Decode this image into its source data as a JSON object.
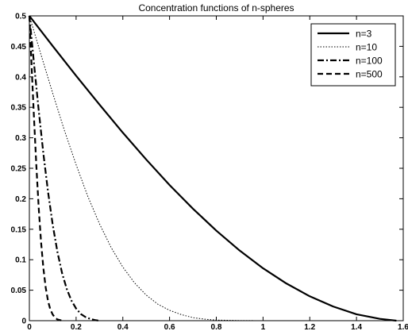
{
  "chart_data": {
    "type": "line",
    "title": "Concentration functions of n-spheres",
    "xlabel": "",
    "ylabel": "",
    "xlim": [
      0,
      1.6
    ],
    "ylim": [
      0,
      0.5
    ],
    "xticks": [
      0,
      0.2,
      0.4,
      0.6,
      0.8,
      1,
      1.2,
      1.4,
      1.6
    ],
    "xtick_labels": [
      "0",
      "0.2",
      "0.4",
      "0.6",
      "0.8",
      "1",
      "1.2",
      "1.4",
      "1.6"
    ],
    "yticks": [
      0,
      0.05,
      0.1,
      0.15,
      0.2,
      0.25,
      0.3,
      0.35,
      0.4,
      0.45,
      0.5
    ],
    "ytick_labels": [
      "0",
      "0.05",
      "0.1",
      "0.15",
      "0.2",
      "0.25",
      "0.3",
      "0.35",
      "0.4",
      "0.45",
      "0.5"
    ],
    "grid": false,
    "legend_position": "top-right",
    "series": [
      {
        "name": "n=3",
        "style": "solid",
        "x": [
          0,
          0.1,
          0.2,
          0.3,
          0.4,
          0.5,
          0.6,
          0.7,
          0.8,
          0.9,
          1.0,
          1.1,
          1.2,
          1.3,
          1.4,
          1.5,
          1.5708
        ],
        "y": [
          0.5,
          0.4505,
          0.4017,
          0.3545,
          0.3084,
          0.2644,
          0.2225,
          0.1837,
          0.1477,
          0.115,
          0.086,
          0.061,
          0.04,
          0.0233,
          0.0105,
          0.003,
          0.0
        ]
      },
      {
        "name": "n=10",
        "style": "dotted",
        "x": [
          0,
          0.05,
          0.1,
          0.15,
          0.2,
          0.25,
          0.3,
          0.35,
          0.4,
          0.45,
          0.5,
          0.55,
          0.6,
          0.65,
          0.7,
          0.75,
          0.8,
          0.9,
          1.0
        ],
        "y": [
          0.5,
          0.436,
          0.373,
          0.312,
          0.256,
          0.204,
          0.159,
          0.12,
          0.088,
          0.062,
          0.042,
          0.027,
          0.017,
          0.01,
          0.005,
          0.0025,
          0.001,
          0.0002,
          0.0
        ]
      },
      {
        "name": "n=100",
        "style": "dashdot",
        "x": [
          0,
          0.02,
          0.04,
          0.06,
          0.08,
          0.1,
          0.12,
          0.14,
          0.16,
          0.18,
          0.2,
          0.22,
          0.24,
          0.26,
          0.28,
          0.3
        ],
        "y": [
          0.5,
          0.421,
          0.345,
          0.274,
          0.211,
          0.157,
          0.113,
          0.078,
          0.052,
          0.033,
          0.02,
          0.011,
          0.006,
          0.003,
          0.001,
          0.0
        ]
      },
      {
        "name": "n=500",
        "style": "dashed",
        "x": [
          0,
          0.01,
          0.02,
          0.03,
          0.04,
          0.05,
          0.06,
          0.07,
          0.08,
          0.09,
          0.1,
          0.11,
          0.12,
          0.13,
          0.14
        ],
        "y": [
          0.5,
          0.414,
          0.331,
          0.253,
          0.185,
          0.129,
          0.086,
          0.054,
          0.032,
          0.018,
          0.01,
          0.005,
          0.002,
          0.001,
          0.0
        ]
      }
    ]
  }
}
